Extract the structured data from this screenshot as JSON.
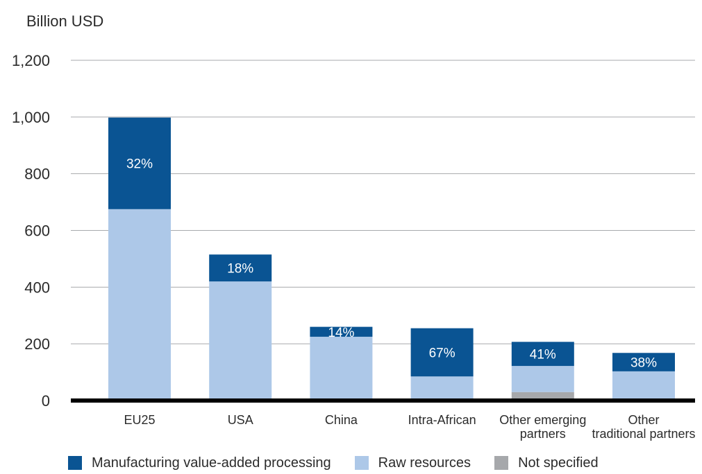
{
  "chart_data": {
    "type": "bar",
    "stacked": true,
    "ylabel": "Billion USD",
    "ylim": [
      0,
      1200
    ],
    "yticks": [
      0,
      200,
      400,
      600,
      800,
      1000,
      1200
    ],
    "ytick_labels": [
      "0",
      "200",
      "400",
      "600",
      "800",
      "1,000",
      "1,200"
    ],
    "grid": true,
    "legend_position": "bottom",
    "categories": [
      "EU25",
      "USA",
      "China",
      "Intra-African",
      "Other emerging partners",
      "Other traditional partners"
    ],
    "series": [
      {
        "name": "Not specified",
        "color": "#a6a8ab",
        "values": [
          0,
          0,
          0,
          0,
          30,
          0
        ]
      },
      {
        "name": "Raw resources",
        "color": "#adc8e8",
        "values": [
          675,
          420,
          225,
          85,
          92,
          103
        ]
      },
      {
        "name": "Manufacturing value-added processing",
        "color": "#0a5493",
        "values": [
          323,
          95,
          35,
          170,
          85,
          65
        ]
      }
    ],
    "annotations": [
      "32%",
      "18%",
      "14%",
      "67%",
      "41%",
      "38%"
    ]
  },
  "legend": [
    {
      "name": "Manufacturing value-added processing",
      "color": "#0a5493"
    },
    {
      "name": "Raw resources",
      "color": "#adc8e8"
    },
    {
      "name": "Not specified",
      "color": "#a6a8ab"
    }
  ]
}
